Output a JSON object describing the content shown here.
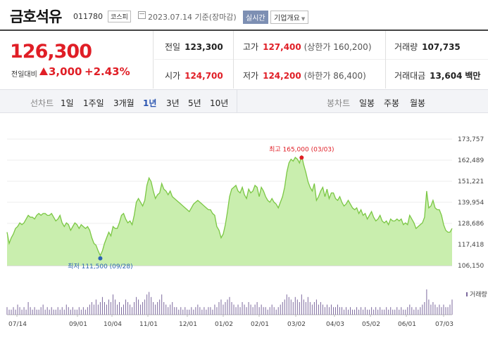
{
  "header": {
    "name": "금호석유",
    "code": "011780",
    "market": "코스피",
    "date": "2023.07.14 기준(장마감)",
    "realtime": "실시간",
    "company_info": "기업개요"
  },
  "price": {
    "current": "126,300",
    "change_label": "전일대비",
    "change": "3,000",
    "change_pct": "+2.43%",
    "direction": "up",
    "color_up": "#e01e26"
  },
  "stats": {
    "prev_label": "전일",
    "prev": "123,300",
    "high_label": "고가",
    "high": "127,400",
    "high_limit": "(상한가 160,200)",
    "vol_label": "거래량",
    "vol": "107,735",
    "open_label": "시가",
    "open": "124,700",
    "low_label": "저가",
    "low": "124,200",
    "low_limit": "(하한가 86,400)",
    "amt_label": "거래대금",
    "amt": "13,604",
    "amt_unit": "백만"
  },
  "tabs": {
    "line_label": "선차트",
    "line": [
      "1일",
      "1주일",
      "3개월",
      "1년",
      "3년",
      "5년",
      "10년"
    ],
    "active": "1년",
    "candle_label": "봉차트",
    "candle": [
      "일봉",
      "주봉",
      "월봉"
    ]
  },
  "chart_data": {
    "type": "area",
    "y_ticks": [
      "173,757",
      "162,489",
      "151,221",
      "139,954",
      "128,686",
      "117,418",
      "106,150"
    ],
    "ylim": [
      106150,
      173757
    ],
    "x_ticks": [
      "07/14",
      "09/01",
      "10/04",
      "11/01",
      "12/01",
      "01/02",
      "02/01",
      "03/02",
      "04/03",
      "05/02",
      "06/01",
      "07/03"
    ],
    "max_label": "최고 165,000 (03/03)",
    "min_label": "최저 111,500 (09/28)",
    "volume_label": "거래량",
    "line_color": "#7bc744",
    "fill_color": "#c9eeae",
    "max_color": "#e01e26",
    "min_color": "#2b63b3",
    "values": [
      124000,
      118000,
      121000,
      123000,
      126000,
      127000,
      129000,
      128000,
      129000,
      131000,
      133000,
      132000,
      132000,
      131000,
      133000,
      134000,
      133000,
      134000,
      134000,
      133000,
      133000,
      134000,
      132000,
      130000,
      131000,
      133000,
      129000,
      127000,
      129000,
      128000,
      125000,
      127000,
      129000,
      128000,
      126000,
      128000,
      127000,
      126000,
      127000,
      125000,
      121000,
      118000,
      117000,
      114000,
      111500,
      114000,
      118000,
      121000,
      124000,
      122000,
      127000,
      126000,
      126000,
      129000,
      133000,
      134000,
      131000,
      129000,
      130000,
      128000,
      133000,
      140000,
      142000,
      140000,
      138000,
      141000,
      149000,
      153000,
      151000,
      146000,
      142000,
      144000,
      145000,
      150000,
      147000,
      146000,
      144000,
      146000,
      143000,
      142000,
      141000,
      140000,
      139000,
      138000,
      137000,
      136000,
      135000,
      137000,
      139000,
      140000,
      141000,
      140000,
      139000,
      138000,
      137000,
      136000,
      136000,
      134000,
      133000,
      127000,
      125000,
      121000,
      123000,
      128000,
      135000,
      143000,
      147000,
      148000,
      149000,
      146000,
      145000,
      148000,
      144000,
      142000,
      147000,
      145000,
      146000,
      149000,
      148000,
      143000,
      148000,
      146000,
      143000,
      141000,
      140000,
      142000,
      140000,
      139000,
      137000,
      140000,
      143000,
      148000,
      156000,
      161000,
      163000,
      162000,
      164000,
      163000,
      161000,
      165000,
      160000,
      156000,
      151000,
      148000,
      146000,
      150000,
      141000,
      143000,
      146000,
      148000,
      143000,
      147000,
      142000,
      145000,
      145000,
      142000,
      141000,
      143000,
      140000,
      138000,
      139000,
      141000,
      139000,
      137000,
      136000,
      137000,
      134000,
      136000,
      133000,
      134000,
      131000,
      133000,
      135000,
      132000,
      130000,
      131000,
      133000,
      130000,
      129000,
      130000,
      128000,
      131000,
      130000,
      130000,
      131000,
      130000,
      131000,
      128000,
      129000,
      128000,
      133000,
      131000,
      129000,
      126000,
      127000,
      128000,
      129000,
      132000,
      146000,
      137000,
      138000,
      141000,
      137000,
      136000,
      136000,
      133000,
      128000,
      125000,
      124000,
      124000,
      126000
    ],
    "volumes": [
      3,
      2,
      2,
      3,
      2,
      4,
      3,
      2,
      3,
      2,
      5,
      3,
      2,
      3,
      2,
      2,
      3,
      4,
      2,
      3,
      2,
      3,
      2,
      2,
      3,
      2,
      3,
      2,
      4,
      3,
      2,
      3,
      2,
      2,
      3,
      2,
      3,
      2,
      3,
      4,
      5,
      4,
      6,
      4,
      5,
      7,
      5,
      4,
      6,
      5,
      8,
      6,
      4,
      5,
      3,
      4,
      6,
      5,
      4,
      3,
      5,
      7,
      6,
      4,
      5,
      6,
      8,
      9,
      7,
      5,
      4,
      5,
      6,
      8,
      5,
      4,
      3,
      4,
      5,
      3,
      3,
      2,
      3,
      2,
      3,
      2,
      2,
      3,
      2,
      3,
      4,
      3,
      2,
      3,
      2,
      3,
      3,
      2,
      4,
      3,
      5,
      6,
      4,
      5,
      6,
      7,
      5,
      4,
      3,
      4,
      3,
      5,
      4,
      3,
      5,
      4,
      3,
      4,
      5,
      3,
      4,
      3,
      3,
      2,
      3,
      4,
      3,
      2,
      3,
      4,
      5,
      6,
      8,
      7,
      6,
      5,
      7,
      6,
      5,
      8,
      6,
      5,
      7,
      5,
      4,
      5,
      6,
      4,
      5,
      4,
      3,
      4,
      3,
      4,
      3,
      3,
      4,
      3,
      3,
      2,
      3,
      2,
      3,
      2,
      2,
      3,
      2,
      3,
      2,
      3,
      2,
      2,
      3,
      2,
      3,
      2,
      3,
      2,
      2,
      3,
      2,
      3,
      2,
      2,
      3,
      2,
      3,
      2,
      2,
      3,
      4,
      3,
      2,
      3,
      2,
      3,
      4,
      5,
      10,
      6,
      4,
      5,
      4,
      3,
      4,
      3,
      4,
      3,
      3,
      4,
      6
    ]
  }
}
